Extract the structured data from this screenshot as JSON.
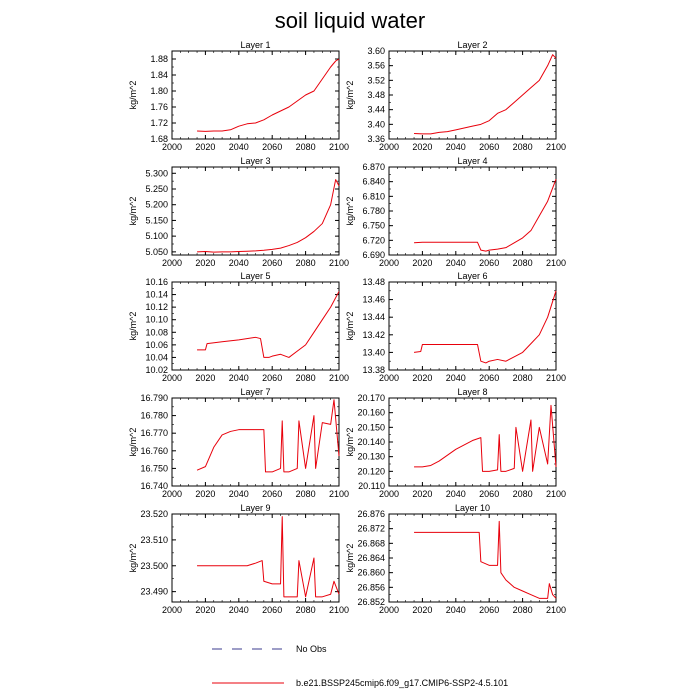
{
  "figure": {
    "title": "soil liquid water",
    "legend": [
      {
        "label": "No Obs",
        "style": "dashed",
        "color": "#3b3b8f"
      },
      {
        "label": "b.e21.BSSP245cmip6.f09_g17.CMIP6-SSP2-4.5.101",
        "style": "solid",
        "color": "#e8000b"
      }
    ]
  },
  "chart_data": [
    {
      "type": "line",
      "title": "Layer 1",
      "xlabel": "",
      "ylabel": "kg/m^2",
      "xlim": [
        2000,
        2100
      ],
      "ylim": [
        1.68,
        1.9
      ],
      "xticks": [
        "2000",
        "2020",
        "2040",
        "2060",
        "2080",
        "2100"
      ],
      "yticks": [
        "1.68",
        "1.72",
        "1.76",
        "1.80",
        "1.84",
        "1.88"
      ],
      "series": [
        {
          "name": "b.e21.BSSP245cmip6.f09_g17.CMIP6-SSP2-4.5.101",
          "color": "#e8000b",
          "x": [
            2015,
            2020,
            2025,
            2030,
            2035,
            2040,
            2045,
            2050,
            2055,
            2060,
            2065,
            2070,
            2075,
            2080,
            2085,
            2090,
            2095,
            2098,
            2100
          ],
          "y": [
            1.7,
            1.699,
            1.7,
            1.7,
            1.703,
            1.712,
            1.718,
            1.72,
            1.728,
            1.74,
            1.75,
            1.76,
            1.775,
            1.79,
            1.8,
            1.83,
            1.86,
            1.875,
            1.88
          ]
        }
      ]
    },
    {
      "type": "line",
      "title": "Layer 2",
      "xlabel": "",
      "ylabel": "kg/m^2",
      "xlim": [
        2000,
        2100
      ],
      "ylim": [
        3.36,
        3.6
      ],
      "xticks": [
        "2000",
        "2020",
        "2040",
        "2060",
        "2080",
        "2100"
      ],
      "yticks": [
        "3.36",
        "3.40",
        "3.44",
        "3.48",
        "3.52",
        "3.56",
        "3.60"
      ],
      "series": [
        {
          "name": "b.e21.BSSP245cmip6.f09_g17.CMIP6-SSP2-4.5.101",
          "color": "#e8000b",
          "x": [
            2015,
            2020,
            2025,
            2030,
            2035,
            2040,
            2045,
            2050,
            2055,
            2060,
            2065,
            2070,
            2075,
            2080,
            2085,
            2090,
            2095,
            2098,
            2100
          ],
          "y": [
            3.375,
            3.374,
            3.374,
            3.378,
            3.38,
            3.385,
            3.39,
            3.395,
            3.4,
            3.41,
            3.43,
            3.44,
            3.46,
            3.48,
            3.5,
            3.52,
            3.56,
            3.59,
            3.58
          ]
        }
      ]
    },
    {
      "type": "line",
      "title": "Layer 3",
      "xlabel": "",
      "ylabel": "kg/m^2",
      "xlim": [
        2000,
        2100
      ],
      "ylim": [
        5.04,
        5.32
      ],
      "xticks": [
        "2000",
        "2020",
        "2040",
        "2060",
        "2080",
        "2100"
      ],
      "yticks": [
        "5.050",
        "5.100",
        "5.150",
        "5.200",
        "5.250",
        "5.300"
      ],
      "series": [
        {
          "name": "b.e21.BSSP245cmip6.f09_g17.CMIP6-SSP2-4.5.101",
          "color": "#e8000b",
          "x": [
            2015,
            2020,
            2025,
            2030,
            2035,
            2040,
            2045,
            2050,
            2055,
            2060,
            2065,
            2070,
            2075,
            2080,
            2085,
            2090,
            2095,
            2098,
            2100
          ],
          "y": [
            5.05,
            5.051,
            5.049,
            5.05,
            5.05,
            5.051,
            5.052,
            5.053,
            5.055,
            5.058,
            5.062,
            5.07,
            5.08,
            5.095,
            5.115,
            5.14,
            5.2,
            5.28,
            5.26
          ]
        }
      ]
    },
    {
      "type": "line",
      "title": "Layer 4",
      "xlabel": "",
      "ylabel": "kg/m^2",
      "xlim": [
        2000,
        2100
      ],
      "ylim": [
        6.69,
        6.87
      ],
      "xticks": [
        "2000",
        "2020",
        "2040",
        "2060",
        "2080",
        "2100"
      ],
      "yticks": [
        "6.690",
        "6.720",
        "6.750",
        "6.780",
        "6.810",
        "6.840",
        "6.870"
      ],
      "series": [
        {
          "name": "b.e21.BSSP245cmip6.f09_g17.CMIP6-SSP2-4.5.101",
          "color": "#e8000b",
          "x": [
            2015,
            2020,
            2025,
            2030,
            2035,
            2040,
            2045,
            2050,
            2053,
            2055,
            2058,
            2060,
            2065,
            2070,
            2075,
            2080,
            2085,
            2090,
            2095,
            2100
          ],
          "y": [
            6.715,
            6.716,
            6.716,
            6.716,
            6.716,
            6.716,
            6.716,
            6.716,
            6.716,
            6.7,
            6.698,
            6.7,
            6.702,
            6.705,
            6.715,
            6.725,
            6.74,
            6.77,
            6.8,
            6.845
          ]
        }
      ]
    },
    {
      "type": "line",
      "title": "Layer 5",
      "xlabel": "",
      "ylabel": "kg/m^2",
      "xlim": [
        2000,
        2100
      ],
      "ylim": [
        10.02,
        10.16
      ],
      "xticks": [
        "2000",
        "2020",
        "2040",
        "2060",
        "2080",
        "2100"
      ],
      "yticks": [
        "10.02",
        "10.04",
        "10.06",
        "10.08",
        "10.10",
        "10.12",
        "10.14",
        "10.16"
      ],
      "series": [
        {
          "name": "b.e21.BSSP245cmip6.f09_g17.CMIP6-SSP2-4.5.101",
          "color": "#e8000b",
          "x": [
            2015,
            2020,
            2021,
            2030,
            2040,
            2050,
            2053,
            2055,
            2058,
            2060,
            2065,
            2070,
            2075,
            2080,
            2085,
            2090,
            2095,
            2100
          ],
          "y": [
            10.052,
            10.052,
            10.062,
            10.065,
            10.068,
            10.072,
            10.07,
            10.04,
            10.04,
            10.042,
            10.045,
            10.04,
            10.05,
            10.06,
            10.08,
            10.1,
            10.12,
            10.145
          ]
        }
      ]
    },
    {
      "type": "line",
      "title": "Layer 6",
      "xlabel": "",
      "ylabel": "kg/m^2",
      "xlim": [
        2000,
        2100
      ],
      "ylim": [
        13.38,
        13.48
      ],
      "xticks": [
        "2000",
        "2020",
        "2040",
        "2060",
        "2080",
        "2100"
      ],
      "yticks": [
        "13.38",
        "13.40",
        "13.42",
        "13.44",
        "13.46",
        "13.48"
      ],
      "series": [
        {
          "name": "b.e21.BSSP245cmip6.f09_g17.CMIP6-SSP2-4.5.101",
          "color": "#e8000b",
          "x": [
            2015,
            2019,
            2020,
            2030,
            2040,
            2050,
            2053,
            2055,
            2058,
            2060,
            2065,
            2070,
            2075,
            2080,
            2085,
            2090,
            2095,
            2100
          ],
          "y": [
            13.4,
            13.401,
            13.409,
            13.409,
            13.409,
            13.409,
            13.409,
            13.39,
            13.388,
            13.39,
            13.392,
            13.39,
            13.395,
            13.4,
            13.41,
            13.42,
            13.44,
            13.47
          ]
        }
      ]
    },
    {
      "type": "line",
      "title": "Layer 7",
      "xlabel": "",
      "ylabel": "kg/m^2",
      "xlim": [
        2000,
        2100
      ],
      "ylim": [
        16.74,
        16.79
      ],
      "xticks": [
        "2000",
        "2020",
        "2040",
        "2060",
        "2080",
        "2100"
      ],
      "yticks": [
        "16.740",
        "16.750",
        "16.760",
        "16.770",
        "16.780",
        "16.790"
      ],
      "series": [
        {
          "name": "b.e21.BSSP245cmip6.f09_g17.CMIP6-SSP2-4.5.101",
          "color": "#e8000b",
          "x": [
            2015,
            2020,
            2025,
            2030,
            2035,
            2040,
            2045,
            2050,
            2055,
            2056,
            2060,
            2065,
            2066,
            2067,
            2070,
            2075,
            2076,
            2080,
            2085,
            2086,
            2090,
            2095,
            2097,
            2100
          ],
          "y": [
            16.749,
            16.751,
            16.762,
            16.769,
            16.771,
            16.772,
            16.772,
            16.772,
            16.772,
            16.748,
            16.748,
            16.75,
            16.777,
            16.748,
            16.748,
            16.75,
            16.777,
            16.75,
            16.78,
            16.75,
            16.776,
            16.775,
            16.789,
            16.757
          ]
        }
      ]
    },
    {
      "type": "line",
      "title": "Layer 8",
      "xlabel": "",
      "ylabel": "kg/m^2",
      "xlim": [
        2000,
        2100
      ],
      "ylim": [
        20.11,
        20.17
      ],
      "xticks": [
        "2000",
        "2020",
        "2040",
        "2060",
        "2080",
        "2100"
      ],
      "yticks": [
        "20.110",
        "20.120",
        "20.130",
        "20.140",
        "20.150",
        "20.160",
        "20.170"
      ],
      "series": [
        {
          "name": "b.e21.BSSP245cmip6.f09_g17.CMIP6-SSP2-4.5.101",
          "color": "#e8000b",
          "x": [
            2015,
            2020,
            2025,
            2030,
            2035,
            2040,
            2045,
            2050,
            2055,
            2056,
            2060,
            2065,
            2066,
            2067,
            2070,
            2075,
            2076,
            2080,
            2085,
            2086,
            2090,
            2095,
            2097,
            2100
          ],
          "y": [
            20.123,
            20.123,
            20.124,
            20.127,
            20.131,
            20.135,
            20.138,
            20.141,
            20.143,
            20.12,
            20.12,
            20.121,
            20.145,
            20.12,
            20.12,
            20.122,
            20.15,
            20.12,
            20.155,
            20.12,
            20.15,
            20.125,
            20.165,
            20.123
          ]
        }
      ]
    },
    {
      "type": "line",
      "title": "Layer 9",
      "xlabel": "",
      "ylabel": "kg/m^2",
      "xlim": [
        2000,
        2100
      ],
      "ylim": [
        23.486,
        23.52
      ],
      "xticks": [
        "2000",
        "2020",
        "2040",
        "2060",
        "2080",
        "2100"
      ],
      "yticks": [
        "23.490",
        "23.500",
        "23.510",
        "23.520"
      ],
      "series": [
        {
          "name": "b.e21.BSSP245cmip6.f09_g17.CMIP6-SSP2-4.5.101",
          "color": "#e8000b",
          "x": [
            2015,
            2020,
            2025,
            2030,
            2035,
            2040,
            2045,
            2050,
            2054,
            2055,
            2060,
            2065,
            2066,
            2067,
            2070,
            2075,
            2076,
            2080,
            2085,
            2086,
            2090,
            2095,
            2097,
            2100
          ],
          "y": [
            23.5,
            23.5,
            23.5,
            23.5,
            23.5,
            23.5,
            23.5,
            23.501,
            23.502,
            23.494,
            23.493,
            23.493,
            23.519,
            23.488,
            23.488,
            23.488,
            23.502,
            23.488,
            23.503,
            23.488,
            23.488,
            23.489,
            23.494,
            23.489
          ]
        }
      ]
    },
    {
      "type": "line",
      "title": "Layer 10",
      "xlabel": "",
      "ylabel": "kg/m^2",
      "xlim": [
        2000,
        2100
      ],
      "ylim": [
        26.852,
        26.876
      ],
      "xticks": [
        "2000",
        "2020",
        "2040",
        "2060",
        "2080",
        "2100"
      ],
      "yticks": [
        "26.852",
        "26.856",
        "26.860",
        "26.864",
        "26.868",
        "26.872",
        "26.876"
      ],
      "series": [
        {
          "name": "b.e21.BSSP245cmip6.f09_g17.CMIP6-SSP2-4.5.101",
          "color": "#e8000b",
          "x": [
            2015,
            2020,
            2025,
            2030,
            2035,
            2040,
            2045,
            2050,
            2054,
            2055,
            2060,
            2065,
            2066,
            2067,
            2070,
            2075,
            2080,
            2085,
            2090,
            2095,
            2096,
            2098,
            2100
          ],
          "y": [
            26.871,
            26.871,
            26.871,
            26.871,
            26.871,
            26.871,
            26.871,
            26.871,
            26.871,
            26.863,
            26.862,
            26.862,
            26.874,
            26.86,
            26.858,
            26.856,
            26.855,
            26.854,
            26.853,
            26.853,
            26.857,
            26.854,
            26.853
          ]
        }
      ]
    }
  ]
}
